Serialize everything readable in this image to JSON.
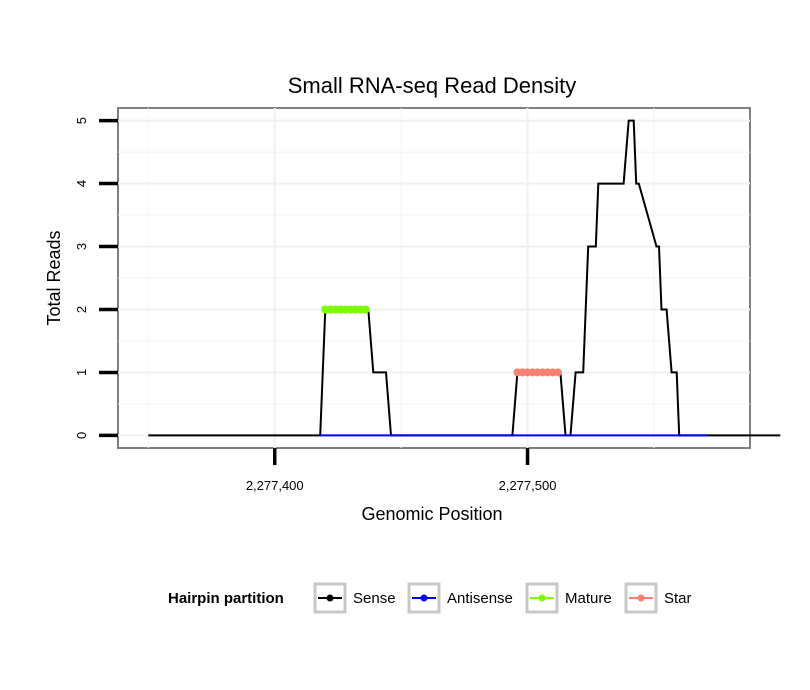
{
  "chart_data": {
    "type": "line",
    "title": "Small RNA-seq Read Density",
    "xlabel": "Genomic Position",
    "ylabel": "Total Reads",
    "xlim": [
      2277338,
      2277588
    ],
    "ylim": [
      -0.2,
      5.2
    ],
    "x_ticks": [
      {
        "value": 2277400,
        "label": "2,277,400"
      },
      {
        "value": 2277500,
        "label": "2,277,500"
      }
    ],
    "y_ticks": [
      {
        "value": 0,
        "label": "0"
      },
      {
        "value": 1,
        "label": "1"
      },
      {
        "value": 2,
        "label": "2"
      },
      {
        "value": 3,
        "label": "3"
      },
      {
        "value": 4,
        "label": "4"
      },
      {
        "value": 5,
        "label": "5"
      }
    ],
    "grid": true,
    "legend": {
      "title": "Hairpin partition",
      "position": "bottom",
      "entries": [
        {
          "name": "Sense",
          "color": "#000000"
        },
        {
          "name": "Antisense",
          "color": "#0000ff"
        },
        {
          "name": "Mature",
          "color": "#7cfc00"
        },
        {
          "name": "Star",
          "color": "#fa8072"
        }
      ]
    },
    "series": [
      {
        "name": "Sense",
        "color": "#000000",
        "kind": "line",
        "x": [
          2277350,
          2277418,
          2277420,
          2277437,
          2277439,
          2277444,
          2277446,
          2277494,
          2277496,
          2277513,
          2277515,
          2277517,
          2277519,
          2277522,
          2277524,
          2277527,
          2277528,
          2277538,
          2277540,
          2277542,
          2277543,
          2277544,
          2277551,
          2277552,
          2277553,
          2277555,
          2277557,
          2277559,
          2277560,
          2277571,
          2277572,
          2277600
        ],
        "y": [
          0,
          0,
          2,
          2,
          1,
          1,
          0,
          0,
          1,
          1,
          0,
          0,
          1,
          1,
          3,
          3,
          4,
          4,
          5,
          5,
          4,
          4,
          3,
          3,
          2,
          2,
          1,
          1,
          0,
          0,
          0,
          0
        ]
      },
      {
        "name": "Antisense",
        "color": "#0000ff",
        "kind": "line",
        "x": [
          2277418,
          2277445,
          2277494,
          2277514,
          2277521,
          2277571
        ],
        "y": [
          0,
          0,
          0,
          0,
          0,
          0
        ]
      },
      {
        "name": "Mature",
        "color": "#7cfc00",
        "kind": "points",
        "x": [
          2277420,
          2277422,
          2277424,
          2277426,
          2277428,
          2277430,
          2277432,
          2277434,
          2277436
        ],
        "y": [
          2,
          2,
          2,
          2,
          2,
          2,
          2,
          2,
          2
        ]
      },
      {
        "name": "Star",
        "color": "#fa8072",
        "kind": "points",
        "x": [
          2277496,
          2277498,
          2277500,
          2277502,
          2277504,
          2277506,
          2277508,
          2277510,
          2277512
        ],
        "y": [
          1,
          1,
          1,
          1,
          1,
          1,
          1,
          1,
          1
        ]
      }
    ]
  }
}
